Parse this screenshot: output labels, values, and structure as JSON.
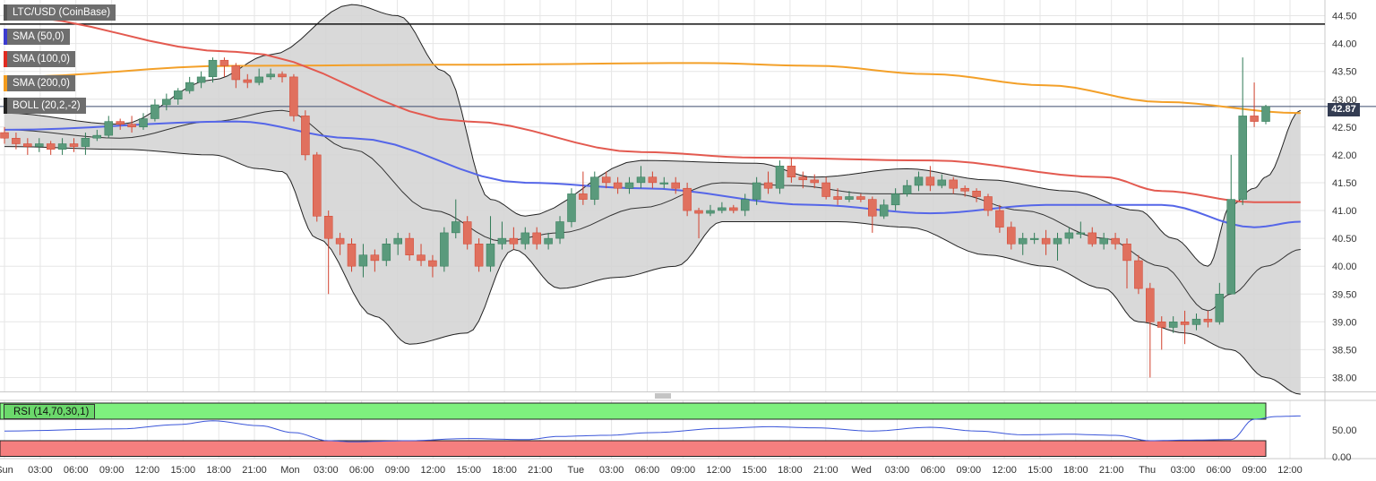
{
  "window": {
    "pair_label": "LTC/USD (CoinBase)",
    "current_price": "42.87"
  },
  "indicators": [
    {
      "label": "SMA (50,0)",
      "color": "#3b3bcf"
    },
    {
      "label": "SMA (100,0)",
      "color": "#e02b20"
    },
    {
      "label": "SMA (200,0)",
      "color": "#f29b1e"
    },
    {
      "label": "BOLL (20,2,-2)",
      "color": "#222222"
    }
  ],
  "rsi_label": "RSI (14,70,30,1)",
  "colors": {
    "bull": "#5a9a7c",
    "bull_dark": "#2f7a56",
    "bear": "#e0705e",
    "bear_dark": "#d2412d",
    "sma50": "#5566e8",
    "sma100": "#e35a50",
    "sma200": "#f3a029",
    "band_fill": "#d2d2d2",
    "rsi_line": "#3b56d9",
    "rsi_over": "#7ef07e",
    "rsi_under": "#f57f7f"
  },
  "chart_data": {
    "type": "candlestick",
    "y_axis": {
      "range": [
        37.75,
        44.75
      ],
      "ticks": [
        "44.50",
        "44.00",
        "43.50",
        "43.00",
        "42.50",
        "42.00",
        "41.50",
        "41.00",
        "40.50",
        "40.00",
        "39.50",
        "39.00",
        "38.50",
        "38.00"
      ]
    },
    "rsi_axis": {
      "ticks": [
        "50.00",
        "0.00"
      ],
      "overbought": 70,
      "oversold": 30
    },
    "x_labels": [
      "Sun",
      "03:00",
      "06:00",
      "09:00",
      "12:00",
      "15:00",
      "18:00",
      "21:00",
      "Mon",
      "03:00",
      "06:00",
      "09:00",
      "12:00",
      "15:00",
      "18:00",
      "21:00",
      "Tue",
      "03:00",
      "06:00",
      "09:00",
      "12:00",
      "15:00",
      "18:00",
      "21:00",
      "Wed",
      "03:00",
      "06:00",
      "09:00",
      "12:00",
      "15:00",
      "18:00",
      "21:00",
      "Thu",
      "03:00",
      "06:00",
      "09:00",
      "12:00"
    ],
    "horizontal_levels": [
      44.35,
      42.87
    ],
    "candles": [
      [
        42.4,
        42.3,
        42.5,
        42.2
      ],
      [
        42.3,
        42.2,
        42.4,
        42.1
      ],
      [
        42.2,
        42.15,
        42.3,
        42.0
      ],
      [
        42.15,
        42.2,
        42.3,
        42.05
      ],
      [
        42.2,
        42.1,
        42.25,
        42.0
      ],
      [
        42.1,
        42.2,
        42.3,
        42.0
      ],
      [
        42.2,
        42.15,
        42.3,
        42.05
      ],
      [
        42.15,
        42.3,
        42.4,
        42.0
      ],
      [
        42.3,
        42.35,
        42.45,
        42.25
      ],
      [
        42.35,
        42.6,
        42.7,
        42.3
      ],
      [
        42.6,
        42.55,
        42.65,
        42.45
      ],
      [
        42.55,
        42.5,
        42.7,
        42.4
      ],
      [
        42.5,
        42.65,
        42.75,
        42.45
      ],
      [
        42.65,
        42.9,
        43.0,
        42.6
      ],
      [
        42.9,
        43.0,
        43.1,
        42.8
      ],
      [
        43.0,
        43.15,
        43.2,
        42.9
      ],
      [
        43.15,
        43.3,
        43.4,
        43.1
      ],
      [
        43.3,
        43.4,
        43.5,
        43.2
      ],
      [
        43.4,
        43.7,
        43.75,
        43.3
      ],
      [
        43.7,
        43.6,
        43.75,
        43.4
      ],
      [
        43.6,
        43.35,
        43.65,
        43.2
      ],
      [
        43.35,
        43.3,
        43.45,
        43.2
      ],
      [
        43.3,
        43.4,
        43.55,
        43.25
      ],
      [
        43.4,
        43.45,
        43.55,
        43.35
      ],
      [
        43.45,
        43.4,
        43.5,
        43.3
      ],
      [
        43.4,
        42.7,
        43.45,
        42.6
      ],
      [
        42.7,
        42.0,
        42.8,
        41.9
      ],
      [
        42.0,
        40.9,
        42.05,
        40.8
      ],
      [
        40.9,
        40.5,
        41.0,
        39.5
      ],
      [
        40.5,
        40.4,
        40.6,
        40.2
      ],
      [
        40.4,
        40.0,
        40.5,
        39.9
      ],
      [
        40.0,
        40.2,
        40.4,
        39.8
      ],
      [
        40.2,
        40.1,
        40.3,
        39.9
      ],
      [
        40.1,
        40.4,
        40.5,
        40.0
      ],
      [
        40.4,
        40.5,
        40.6,
        40.2
      ],
      [
        40.5,
        40.2,
        40.6,
        40.1
      ],
      [
        40.2,
        40.1,
        40.4,
        40.0
      ],
      [
        40.1,
        40.0,
        40.2,
        39.8
      ],
      [
        40.0,
        40.6,
        40.7,
        39.9
      ],
      [
        40.6,
        40.8,
        41.2,
        40.5
      ],
      [
        40.8,
        40.4,
        40.9,
        40.3
      ],
      [
        40.4,
        40.0,
        40.5,
        39.9
      ],
      [
        40.0,
        40.4,
        40.9,
        39.9
      ],
      [
        40.4,
        40.5,
        40.8,
        40.3
      ],
      [
        40.5,
        40.4,
        40.7,
        40.3
      ],
      [
        40.4,
        40.6,
        40.7,
        40.3
      ],
      [
        40.6,
        40.4,
        40.7,
        40.3
      ],
      [
        40.4,
        40.5,
        40.6,
        40.3
      ],
      [
        40.5,
        40.8,
        40.9,
        40.4
      ],
      [
        40.8,
        41.3,
        41.4,
        40.7
      ],
      [
        41.3,
        41.2,
        41.7,
        41.1
      ],
      [
        41.2,
        41.6,
        41.7,
        41.1
      ],
      [
        41.6,
        41.5,
        41.7,
        41.4
      ],
      [
        41.5,
        41.4,
        41.6,
        41.3
      ],
      [
        41.4,
        41.5,
        41.6,
        41.3
      ],
      [
        41.5,
        41.6,
        41.8,
        41.4
      ],
      [
        41.6,
        41.5,
        41.7,
        41.4
      ],
      [
        41.5,
        41.5,
        41.6,
        41.4
      ],
      [
        41.5,
        41.4,
        41.6,
        41.3
      ],
      [
        41.4,
        41.0,
        41.5,
        40.9
      ],
      [
        41.0,
        40.95,
        41.05,
        40.5
      ],
      [
        40.95,
        41.0,
        41.1,
        40.9
      ],
      [
        41.0,
        41.05,
        41.15,
        40.95
      ],
      [
        41.05,
        41.0,
        41.1,
        40.95
      ],
      [
        41.0,
        41.2,
        41.3,
        40.9
      ],
      [
        41.2,
        41.5,
        41.6,
        41.1
      ],
      [
        41.5,
        41.4,
        41.7,
        41.3
      ],
      [
        41.4,
        41.8,
        41.9,
        41.3
      ],
      [
        41.8,
        41.6,
        41.95,
        41.5
      ],
      [
        41.6,
        41.55,
        41.7,
        41.4
      ],
      [
        41.55,
        41.5,
        41.65,
        41.4
      ],
      [
        41.5,
        41.25,
        41.6,
        41.2
      ],
      [
        41.25,
        41.2,
        41.4,
        41.1
      ],
      [
        41.2,
        41.25,
        41.35,
        41.15
      ],
      [
        41.25,
        41.2,
        41.3,
        41.15
      ],
      [
        41.2,
        40.9,
        41.25,
        40.6
      ],
      [
        40.9,
        41.1,
        41.2,
        40.85
      ],
      [
        41.1,
        41.3,
        41.4,
        41.0
      ],
      [
        41.3,
        41.45,
        41.55,
        41.25
      ],
      [
        41.45,
        41.6,
        41.7,
        41.35
      ],
      [
        41.6,
        41.45,
        41.8,
        41.35
      ],
      [
        41.45,
        41.55,
        41.65,
        41.4
      ],
      [
        41.55,
        41.4,
        41.6,
        41.3
      ],
      [
        41.4,
        41.35,
        41.45,
        41.25
      ],
      [
        41.35,
        41.25,
        41.4,
        41.15
      ],
      [
        41.25,
        41.0,
        41.3,
        40.9
      ],
      [
        41.0,
        40.7,
        41.1,
        40.6
      ],
      [
        40.7,
        40.4,
        40.8,
        40.3
      ],
      [
        40.4,
        40.5,
        40.6,
        40.2
      ],
      [
        40.5,
        40.5,
        40.6,
        40.4
      ],
      [
        40.5,
        40.4,
        40.65,
        40.2
      ],
      [
        40.4,
        40.5,
        40.6,
        40.1
      ],
      [
        40.5,
        40.6,
        40.7,
        40.4
      ],
      [
        40.6,
        40.6,
        40.8,
        40.5
      ],
      [
        40.6,
        40.4,
        40.7,
        40.35
      ],
      [
        40.4,
        40.5,
        40.6,
        40.3
      ],
      [
        40.5,
        40.4,
        40.6,
        40.3
      ],
      [
        40.4,
        40.1,
        40.5,
        39.6
      ],
      [
        40.1,
        39.6,
        40.2,
        39.5
      ],
      [
        39.6,
        39.0,
        39.7,
        38.0
      ],
      [
        39.0,
        38.9,
        39.1,
        38.5
      ],
      [
        38.9,
        39.0,
        39.1,
        38.8
      ],
      [
        39.0,
        38.95,
        39.2,
        38.6
      ],
      [
        38.95,
        39.05,
        39.15,
        38.85
      ],
      [
        39.05,
        39.0,
        39.2,
        38.9
      ],
      [
        39.0,
        39.5,
        39.7,
        38.95
      ],
      [
        39.5,
        41.2,
        42.0,
        39.5
      ],
      [
        41.2,
        42.7,
        43.75,
        41.1
      ],
      [
        42.7,
        42.6,
        43.3,
        42.5
      ],
      [
        42.6,
        42.87,
        42.9,
        42.55
      ]
    ],
    "sma50": [
      [
        0,
        42.45
      ],
      [
        20,
        42.6
      ],
      [
        30,
        42.3
      ],
      [
        45,
        41.5
      ],
      [
        55,
        41.4
      ],
      [
        70,
        41.1
      ],
      [
        80,
        40.95
      ],
      [
        90,
        41.1
      ],
      [
        100,
        41.1
      ],
      [
        108,
        40.7
      ],
      [
        112,
        40.8
      ]
    ],
    "sma100": [
      [
        0,
        44.5
      ],
      [
        20,
        43.85
      ],
      [
        40,
        42.6
      ],
      [
        55,
        42.05
      ],
      [
        65,
        41.95
      ],
      [
        80,
        41.9
      ],
      [
        95,
        41.6
      ],
      [
        100,
        41.35
      ],
      [
        108,
        41.15
      ],
      [
        112,
        41.15
      ]
    ],
    "sma200": [
      [
        0,
        43.4
      ],
      [
        20,
        43.6
      ],
      [
        40,
        43.62
      ],
      [
        60,
        43.65
      ],
      [
        70,
        43.6
      ],
      [
        80,
        43.45
      ],
      [
        90,
        43.25
      ],
      [
        100,
        42.95
      ],
      [
        112,
        42.75
      ]
    ],
    "boll_upper": [
      [
        0,
        42.75
      ],
      [
        10,
        42.55
      ],
      [
        18,
        43.35
      ],
      [
        23,
        43.8
      ],
      [
        30,
        44.7
      ],
      [
        34,
        44.5
      ],
      [
        38,
        43.5
      ],
      [
        42,
        41.2
      ],
      [
        45,
        40.9
      ],
      [
        55,
        41.9
      ],
      [
        65,
        41.85
      ],
      [
        70,
        41.6
      ],
      [
        78,
        41.75
      ],
      [
        85,
        41.55
      ],
      [
        92,
        41.35
      ],
      [
        98,
        41.0
      ],
      [
        101,
        40.5
      ],
      [
        104,
        40.0
      ],
      [
        106,
        41.1
      ],
      [
        108,
        41.4
      ],
      [
        109,
        41.6
      ],
      [
        112,
        42.8
      ]
    ],
    "boll_lower": [
      [
        0,
        42.15
      ],
      [
        10,
        42.1
      ],
      [
        18,
        42.0
      ],
      [
        22,
        41.75
      ],
      [
        24,
        41.7
      ],
      [
        27,
        40.5
      ],
      [
        32,
        39.1
      ],
      [
        35,
        38.6
      ],
      [
        40,
        38.8
      ],
      [
        44,
        40.3
      ],
      [
        48,
        39.6
      ],
      [
        53,
        39.8
      ],
      [
        58,
        40.0
      ],
      [
        62,
        40.8
      ],
      [
        68,
        40.8
      ],
      [
        72,
        40.8
      ],
      [
        78,
        40.7
      ],
      [
        85,
        40.2
      ],
      [
        90,
        40.0
      ],
      [
        95,
        39.6
      ],
      [
        98,
        39.0
      ],
      [
        102,
        38.8
      ],
      [
        106,
        38.5
      ],
      [
        109,
        38.0
      ],
      [
        112,
        37.7
      ]
    ],
    "boll_middle": [
      [
        0,
        42.45
      ],
      [
        10,
        42.3
      ],
      [
        18,
        42.6
      ],
      [
        24,
        42.8
      ],
      [
        30,
        42.1
      ],
      [
        37,
        41.0
      ],
      [
        43,
        40.45
      ],
      [
        48,
        40.6
      ],
      [
        55,
        41.05
      ],
      [
        62,
        41.5
      ],
      [
        68,
        41.45
      ],
      [
        75,
        41.3
      ],
      [
        82,
        41.3
      ],
      [
        88,
        41.0
      ],
      [
        95,
        40.5
      ],
      [
        100,
        40.0
      ],
      [
        104,
        39.2
      ],
      [
        106,
        39.5
      ],
      [
        109,
        40.0
      ],
      [
        112,
        40.3
      ]
    ],
    "rsi": [
      [
        0,
        48
      ],
      [
        10,
        52
      ],
      [
        15,
        60
      ],
      [
        18,
        67
      ],
      [
        22,
        58
      ],
      [
        25,
        45
      ],
      [
        28,
        30
      ],
      [
        30,
        28
      ],
      [
        35,
        30
      ],
      [
        40,
        34
      ],
      [
        45,
        32
      ],
      [
        48,
        38
      ],
      [
        52,
        40
      ],
      [
        56,
        45
      ],
      [
        62,
        53
      ],
      [
        66,
        56
      ],
      [
        70,
        54
      ],
      [
        75,
        48
      ],
      [
        80,
        55
      ],
      [
        84,
        48
      ],
      [
        88,
        41
      ],
      [
        92,
        42
      ],
      [
        96,
        40
      ],
      [
        99,
        30
      ],
      [
        102,
        31
      ],
      [
        106,
        32
      ],
      [
        108,
        70
      ],
      [
        110,
        75
      ],
      [
        112,
        76
      ]
    ]
  }
}
